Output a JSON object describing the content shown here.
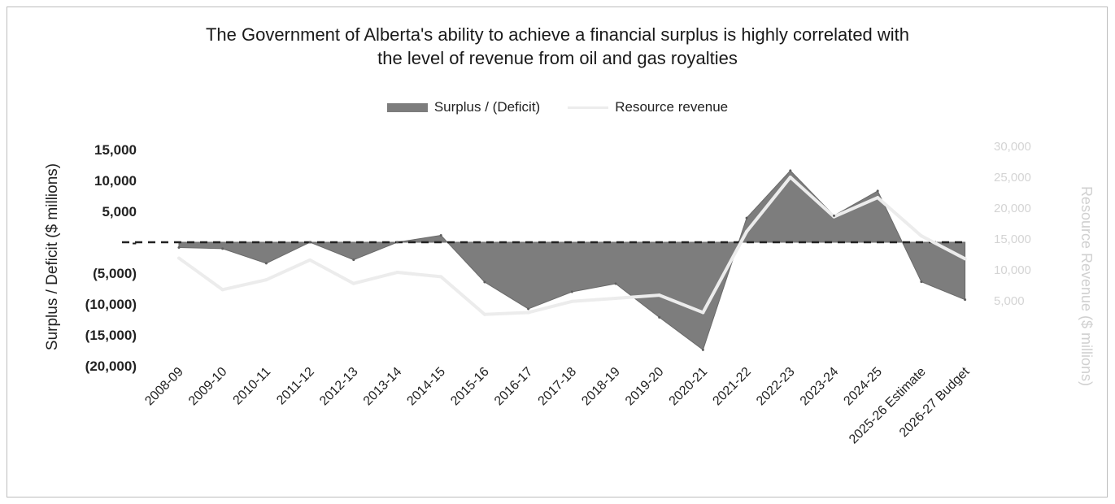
{
  "chart_data": {
    "type": "area",
    "title": "The Government of Alberta's ability to achieve a financial surplus is highly correlated with the level of revenue from oil and gas royalties",
    "title_lines": [
      "The Government of Alberta's ability to achieve a financial surplus is highly correlated with",
      "the level of revenue from oil and gas royalties"
    ],
    "categories": [
      "2008-09",
      "2009-10",
      "2010-11",
      "2011-12",
      "2012-13",
      "2013-14",
      "2014-15",
      "2015-16",
      "2016-17",
      "2017-18",
      "2018-19",
      "2019-20",
      "2020-21",
      "2021-22",
      "2022-23",
      "2023-24",
      "2024-25",
      "2025-26 Estimate",
      "2026-27 Budget"
    ],
    "series": [
      {
        "name": "Surplus / (Deficit)",
        "type": "area",
        "axis": "left",
        "color": "#7d7d7d",
        "values": [
          -852,
          -1032,
          -3410,
          0,
          -2842,
          0,
          1115,
          -6442,
          -10784,
          -8023,
          -6711,
          -12156,
          -17410,
          3938,
          11600,
          4300,
          8300,
          -6400,
          -9300
        ]
      },
      {
        "name": "Resource revenue",
        "type": "line",
        "axis": "right",
        "color": "#ececec",
        "values": [
          11900,
          6800,
          8400,
          11600,
          7800,
          9600,
          8900,
          2800,
          3100,
          4900,
          5400,
          5900,
          3100,
          16200,
          25000,
          18600,
          21700,
          15500,
          11800
        ]
      }
    ],
    "ylabel_left": "Surplus / Deficit ($ millions)",
    "ylabel_right": "Resource Revenue ($ millions)",
    "ylim_left": [
      -20000,
      15000
    ],
    "ylim_right": [
      0,
      30000
    ],
    "yticks_left": [
      "15,000",
      "10,000",
      "5,000",
      "-",
      "(5,000)",
      "(10,000)",
      "(15,000)",
      "(20,000)"
    ],
    "yticks_left_values": [
      15000,
      10000,
      5000,
      0,
      -5000,
      -10000,
      -15000,
      -20000
    ],
    "yticks_right": [
      "30,000",
      "25,000",
      "20,000",
      "15,000",
      "10,000",
      "5,000"
    ],
    "yticks_right_values": [
      30000,
      25000,
      20000,
      15000,
      10000,
      5000
    ],
    "zero_line": "dashed",
    "grid": false,
    "legend_position": "top"
  }
}
